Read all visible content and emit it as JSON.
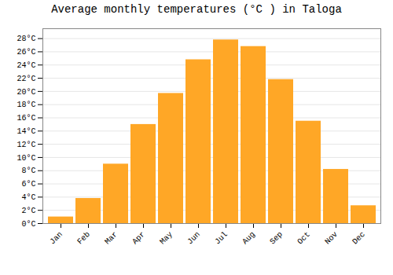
{
  "chart_data": {
    "type": "bar",
    "title": "Average monthly temperatures (°C ) in Taloga",
    "categories": [
      "Jan",
      "Feb",
      "Mar",
      "Apr",
      "May",
      "Jun",
      "Jul",
      "Aug",
      "Sep",
      "Oct",
      "Nov",
      "Dec"
    ],
    "values": [
      1.0,
      3.8,
      9.0,
      15.0,
      19.7,
      24.8,
      27.8,
      26.8,
      21.8,
      15.5,
      8.2,
      2.7
    ],
    "color": "#FFA726",
    "ylim": [
      0,
      29.5
    ],
    "yticks": [
      {
        "value": 0,
        "label": "0°C"
      },
      {
        "value": 2,
        "label": "2°C"
      },
      {
        "value": 4,
        "label": "4°C"
      },
      {
        "value": 6,
        "label": "6°C"
      },
      {
        "value": 8,
        "label": "8°C"
      },
      {
        "value": 10,
        "label": "10°C"
      },
      {
        "value": 12,
        "label": "12°C"
      },
      {
        "value": 14,
        "label": "14°C"
      },
      {
        "value": 16,
        "label": "16°C"
      },
      {
        "value": 18,
        "label": "18°C"
      },
      {
        "value": 20,
        "label": "20°C"
      },
      {
        "value": 22,
        "label": "22°C"
      },
      {
        "value": 24,
        "label": "24°C"
      },
      {
        "value": 26,
        "label": "26°C"
      },
      {
        "value": 28,
        "label": "28°C"
      }
    ],
    "grid": true
  }
}
